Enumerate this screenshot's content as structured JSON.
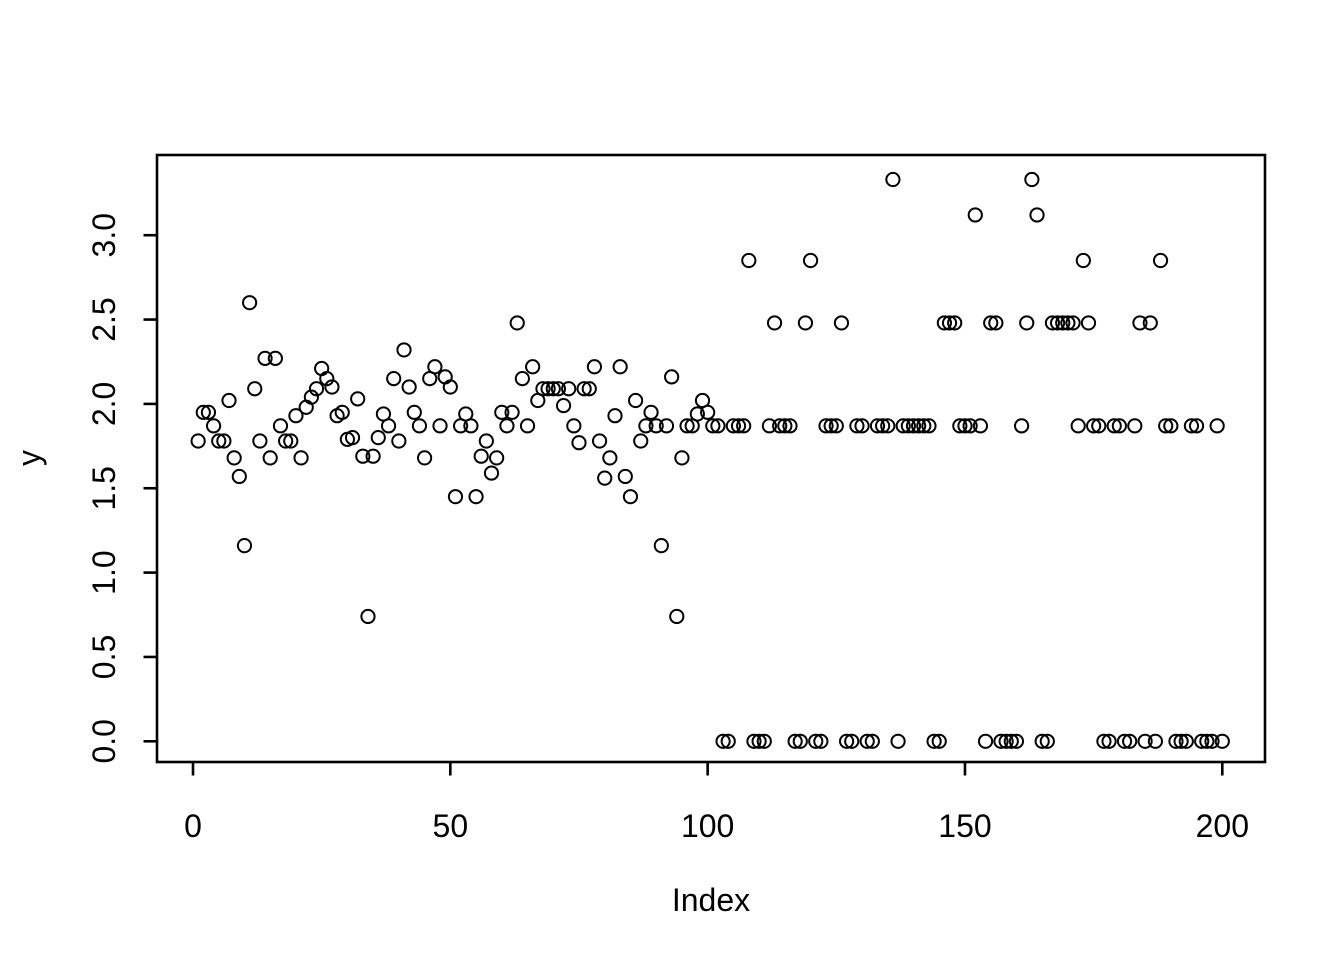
{
  "chart_data": {
    "type": "scatter",
    "title": "",
    "xlabel": "Index",
    "ylabel": "y",
    "marker": "open-circle",
    "grid": false,
    "legend": null,
    "background_color": "#ffffff",
    "axis_color": "#000000",
    "point_color": "#000000",
    "xlim": [
      0,
      200
    ],
    "ylim": [
      0.0,
      3.4
    ],
    "x_ticks": [
      0,
      50,
      100,
      150,
      200
    ],
    "x_tick_labels": [
      "0",
      "50",
      "100",
      "150",
      "200"
    ],
    "y_ticks": [
      0.0,
      0.5,
      1.0,
      1.5,
      2.0,
      2.5,
      3.0
    ],
    "y_tick_labels": [
      "0.0",
      "0.5",
      "1.0",
      "1.5",
      "2.0",
      "2.5",
      "3.0"
    ],
    "points": [
      [
        1,
        1.78
      ],
      [
        2,
        1.95
      ],
      [
        3,
        1.95
      ],
      [
        4,
        1.87
      ],
      [
        5,
        1.78
      ],
      [
        6,
        1.78
      ],
      [
        7,
        2.02
      ],
      [
        8,
        1.68
      ],
      [
        9,
        1.57
      ],
      [
        10,
        1.16
      ],
      [
        11,
        2.6
      ],
      [
        12,
        2.09
      ],
      [
        13,
        1.78
      ],
      [
        14,
        2.27
      ],
      [
        15,
        1.68
      ],
      [
        16,
        2.27
      ],
      [
        17,
        1.87
      ],
      [
        18,
        1.78
      ],
      [
        19,
        1.78
      ],
      [
        20,
        1.93
      ],
      [
        21,
        1.68
      ],
      [
        22,
        1.98
      ],
      [
        23,
        2.04
      ],
      [
        24,
        2.09
      ],
      [
        25,
        2.21
      ],
      [
        26,
        2.15
      ],
      [
        27,
        2.1
      ],
      [
        28,
        1.93
      ],
      [
        29,
        1.95
      ],
      [
        30,
        1.79
      ],
      [
        31,
        1.8
      ],
      [
        32,
        2.03
      ],
      [
        33,
        1.69
      ],
      [
        34,
        0.74
      ],
      [
        35,
        1.69
      ],
      [
        36,
        1.8
      ],
      [
        37,
        1.94
      ],
      [
        38,
        1.87
      ],
      [
        39,
        2.15
      ],
      [
        40,
        1.78
      ],
      [
        41,
        2.32
      ],
      [
        42,
        2.1
      ],
      [
        43,
        1.95
      ],
      [
        44,
        1.87
      ],
      [
        45,
        1.68
      ],
      [
        46,
        2.15
      ],
      [
        47,
        2.22
      ],
      [
        48,
        1.87
      ],
      [
        49,
        2.16
      ],
      [
        50,
        2.1
      ],
      [
        51,
        1.45
      ],
      [
        52,
        1.87
      ],
      [
        53,
        1.94
      ],
      [
        54,
        1.87
      ],
      [
        55,
        1.45
      ],
      [
        56,
        1.69
      ],
      [
        57,
        1.78
      ],
      [
        58,
        1.59
      ],
      [
        59,
        1.68
      ],
      [
        60,
        1.95
      ],
      [
        61,
        1.87
      ],
      [
        62,
        1.95
      ],
      [
        63,
        2.48
      ],
      [
        64,
        2.15
      ],
      [
        65,
        1.87
      ],
      [
        66,
        2.22
      ],
      [
        67,
        2.02
      ],
      [
        68,
        2.09
      ],
      [
        69,
        2.09
      ],
      [
        70,
        2.09
      ],
      [
        71,
        2.09
      ],
      [
        72,
        1.99
      ],
      [
        73,
        2.09
      ],
      [
        74,
        1.87
      ],
      [
        75,
        1.77
      ],
      [
        76,
        2.09
      ],
      [
        77,
        2.09
      ],
      [
        78,
        2.22
      ],
      [
        79,
        1.78
      ],
      [
        80,
        1.56
      ],
      [
        81,
        1.68
      ],
      [
        82,
        1.93
      ],
      [
        83,
        2.22
      ],
      [
        84,
        1.57
      ],
      [
        85,
        1.45
      ],
      [
        86,
        2.02
      ],
      [
        87,
        1.78
      ],
      [
        88,
        1.87
      ],
      [
        89,
        1.95
      ],
      [
        90,
        1.87
      ],
      [
        91,
        1.16
      ],
      [
        92,
        1.87
      ],
      [
        93,
        2.16
      ],
      [
        94,
        0.74
      ],
      [
        95,
        1.68
      ],
      [
        96,
        1.87
      ],
      [
        97,
        1.87
      ],
      [
        98,
        1.94
      ],
      [
        99,
        2.02
      ],
      [
        100,
        1.95
      ],
      [
        101,
        1.87
      ],
      [
        102,
        1.87
      ],
      [
        103,
        0.0
      ],
      [
        104,
        0.0
      ],
      [
        105,
        1.87
      ],
      [
        106,
        1.87
      ],
      [
        107,
        1.87
      ],
      [
        108,
        2.85
      ],
      [
        109,
        0.0
      ],
      [
        110,
        0.0
      ],
      [
        111,
        0.0
      ],
      [
        112,
        1.87
      ],
      [
        113,
        2.48
      ],
      [
        114,
        1.87
      ],
      [
        115,
        1.87
      ],
      [
        116,
        1.87
      ],
      [
        117,
        0.0
      ],
      [
        118,
        0.0
      ],
      [
        119,
        2.48
      ],
      [
        120,
        2.85
      ],
      [
        121,
        0.0
      ],
      [
        122,
        0.0
      ],
      [
        123,
        1.87
      ],
      [
        124,
        1.87
      ],
      [
        125,
        1.87
      ],
      [
        126,
        2.48
      ],
      [
        127,
        0.0
      ],
      [
        128,
        0.0
      ],
      [
        129,
        1.87
      ],
      [
        130,
        1.87
      ],
      [
        131,
        0.0
      ],
      [
        132,
        0.0
      ],
      [
        133,
        1.87
      ],
      [
        134,
        1.87
      ],
      [
        135,
        1.87
      ],
      [
        136,
        3.33
      ],
      [
        137,
        0.0
      ],
      [
        138,
        1.87
      ],
      [
        139,
        1.87
      ],
      [
        140,
        1.87
      ],
      [
        141,
        1.87
      ],
      [
        142,
        1.87
      ],
      [
        143,
        1.87
      ],
      [
        144,
        0.0
      ],
      [
        145,
        0.0
      ],
      [
        146,
        2.48
      ],
      [
        147,
        2.48
      ],
      [
        148,
        2.48
      ],
      [
        149,
        1.87
      ],
      [
        150,
        1.87
      ],
      [
        151,
        1.87
      ],
      [
        152,
        3.12
      ],
      [
        153,
        1.87
      ],
      [
        154,
        0.0
      ],
      [
        155,
        2.48
      ],
      [
        156,
        2.48
      ],
      [
        157,
        0.0
      ],
      [
        158,
        0.0
      ],
      [
        159,
        0.0
      ],
      [
        160,
        0.0
      ],
      [
        161,
        1.87
      ],
      [
        162,
        2.48
      ],
      [
        163,
        3.33
      ],
      [
        164,
        3.12
      ],
      [
        165,
        0.0
      ],
      [
        166,
        0.0
      ],
      [
        167,
        2.48
      ],
      [
        168,
        2.48
      ],
      [
        169,
        2.48
      ],
      [
        170,
        2.48
      ],
      [
        171,
        2.48
      ],
      [
        172,
        1.87
      ],
      [
        173,
        2.85
      ],
      [
        174,
        2.48
      ],
      [
        175,
        1.87
      ],
      [
        176,
        1.87
      ],
      [
        177,
        0.0
      ],
      [
        178,
        0.0
      ],
      [
        179,
        1.87
      ],
      [
        180,
        1.87
      ],
      [
        181,
        0.0
      ],
      [
        182,
        0.0
      ],
      [
        183,
        1.87
      ],
      [
        184,
        2.48
      ],
      [
        185,
        0.0
      ],
      [
        186,
        2.48
      ],
      [
        187,
        0.0
      ],
      [
        188,
        2.85
      ],
      [
        189,
        1.87
      ],
      [
        190,
        1.87
      ],
      [
        191,
        0.0
      ],
      [
        192,
        0.0
      ],
      [
        193,
        0.0
      ],
      [
        194,
        1.87
      ],
      [
        195,
        1.87
      ],
      [
        196,
        0.0
      ],
      [
        197,
        0.0
      ],
      [
        198,
        0.0
      ],
      [
        199,
        1.87
      ],
      [
        200,
        0.0
      ]
    ]
  }
}
